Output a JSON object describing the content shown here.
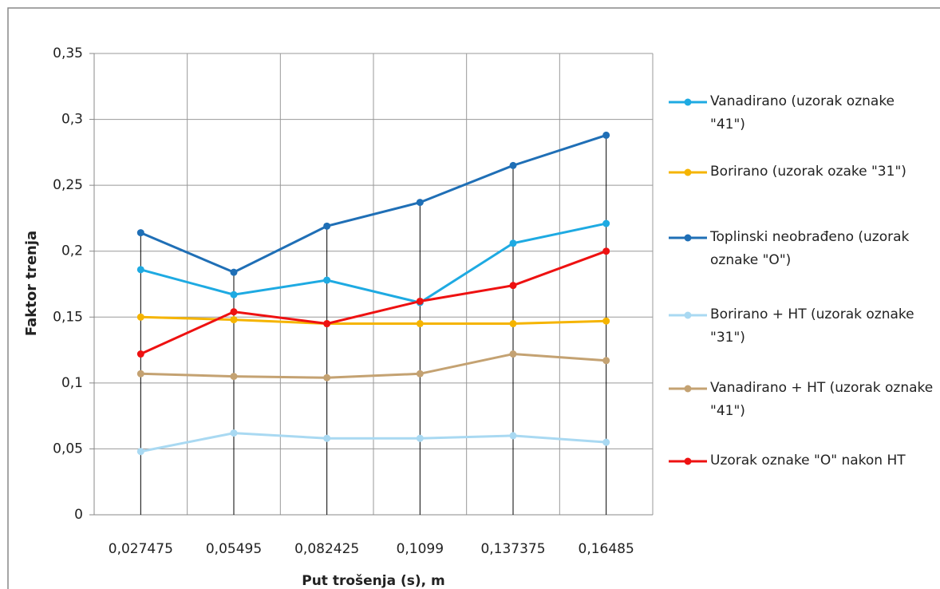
{
  "chart_data": {
    "type": "line",
    "x_label": "Put trošenja (s), m",
    "y_label": "Faktor trenja",
    "categories": [
      "0,027475",
      "0,05495",
      "0,082425",
      "0,1099",
      "0,137375",
      "0,16485"
    ],
    "series": [
      {
        "name": "Vanadirano (uzorak oznake \"41\")",
        "color": "#1eaae2",
        "values": [
          0.186,
          0.167,
          0.178,
          0.161,
          0.206,
          0.221
        ]
      },
      {
        "name": "Borirano (uzorak ozake \"31\")",
        "color": "#f5b400",
        "values": [
          0.15,
          0.148,
          0.145,
          0.145,
          0.145,
          0.147
        ]
      },
      {
        "name": "Toplinski neobrađeno (uzorak oznake \"O\")",
        "color": "#1f6fb6",
        "values": [
          0.214,
          0.184,
          0.219,
          0.237,
          0.265,
          0.288
        ]
      },
      {
        "name": "Borirano + HT (uzorak oznake \"31\")",
        "color": "#a9d9f2",
        "values": [
          0.048,
          0.062,
          0.058,
          0.058,
          0.06,
          0.055
        ]
      },
      {
        "name": "Vanadirano + HT (uzorak oznake \"41\")",
        "color": "#c4a272",
        "values": [
          0.107,
          0.105,
          0.104,
          0.107,
          0.122,
          0.117
        ]
      },
      {
        "name": "Uzorak oznake \"O\" nakon HT",
        "color": "#ee1111",
        "values": [
          0.122,
          0.154,
          0.145,
          0.162,
          0.174,
          0.2
        ]
      }
    ],
    "ylim": [
      0,
      0.35
    ],
    "yticks": [
      0,
      {
        "value": 0.05,
        "label": "0,05"
      },
      {
        "value": 0.1,
        "label": "0,1"
      },
      {
        "value": 0.15,
        "label": "0,15"
      },
      {
        "value": 0.2,
        "label": "0,2"
      },
      {
        "value": 0.25,
        "label": "0,25"
      },
      {
        "value": 0.3,
        "label": "0,3"
      },
      {
        "value": 0.35,
        "label": "0,35"
      }
    ],
    "grid": true,
    "legend": "right"
  }
}
